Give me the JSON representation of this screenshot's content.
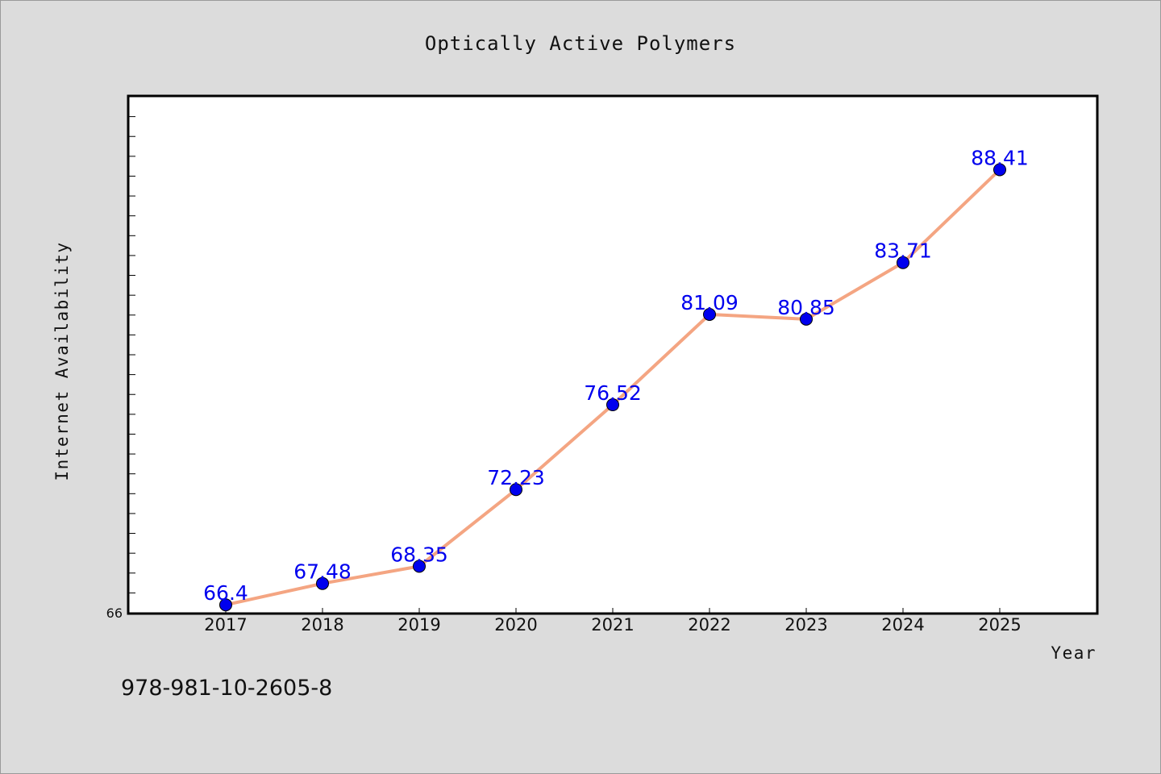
{
  "chart_data": {
    "type": "line",
    "title": "Optically Active Polymers",
    "xlabel": "Year",
    "ylabel": "Internet Availability",
    "categories": [
      "2017",
      "2018",
      "2019",
      "2020",
      "2021",
      "2022",
      "2023",
      "2024",
      "2025"
    ],
    "series": [
      {
        "values": [
          66.4,
          67.48,
          68.35,
          72.23,
          76.52,
          81.09,
          80.85,
          83.71,
          88.41
        ],
        "data_labels": [
          "66.4",
          "67.48",
          "68.35",
          "72.23",
          "76.52",
          "81.09",
          "80.85",
          "83.71",
          "88.41"
        ]
      }
    ],
    "ylim": [
      66,
      92.1
    ],
    "y_tick_label": "66",
    "grid": false,
    "legend": "none",
    "colors": {
      "line": "#f4a582",
      "marker": "#0000ee",
      "label": "#0000ee",
      "background": "#dcdcdc",
      "plot_bg": "#ffffff"
    }
  },
  "footer": {
    "text": "978-981-10-2605-8"
  }
}
